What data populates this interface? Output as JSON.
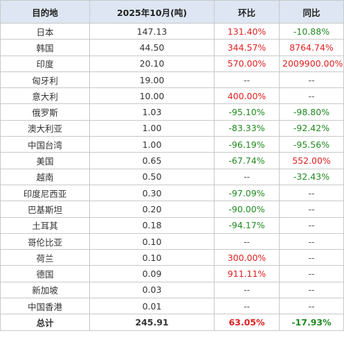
{
  "header": {
    "destination": "目的地",
    "volume": "2025年10月(吨)",
    "mom": "环比",
    "yoy": "同比"
  },
  "rows": [
    {
      "dest": "日本",
      "vol": "147.13",
      "mom": "131.40%",
      "mom_t": "pos",
      "yoy": "-10.88%",
      "yoy_t": "neg"
    },
    {
      "dest": "韩国",
      "vol": "44.50",
      "mom": "344.57%",
      "mom_t": "pos",
      "yoy": "8764.74%",
      "yoy_t": "pos"
    },
    {
      "dest": "印度",
      "vol": "20.10",
      "mom": "570.00%",
      "mom_t": "pos",
      "yoy": "2009900.00%",
      "yoy_t": "pos"
    },
    {
      "dest": "匈牙利",
      "vol": "19.00",
      "mom": "--",
      "mom_t": "na",
      "yoy": "--",
      "yoy_t": "na"
    },
    {
      "dest": "意大利",
      "vol": "10.00",
      "mom": "400.00%",
      "mom_t": "pos",
      "yoy": "--",
      "yoy_t": "na"
    },
    {
      "dest": "俄罗斯",
      "vol": "1.03",
      "mom": "-95.10%",
      "mom_t": "neg",
      "yoy": "-98.80%",
      "yoy_t": "neg"
    },
    {
      "dest": "澳大利亚",
      "vol": "1.00",
      "mom": "-83.33%",
      "mom_t": "neg",
      "yoy": "-92.42%",
      "yoy_t": "neg"
    },
    {
      "dest": "中国台湾",
      "vol": "1.00",
      "mom": "-96.19%",
      "mom_t": "neg",
      "yoy": "-95.56%",
      "yoy_t": "neg"
    },
    {
      "dest": "美国",
      "vol": "0.65",
      "mom": "-67.74%",
      "mom_t": "neg",
      "yoy": "552.00%",
      "yoy_t": "pos"
    },
    {
      "dest": "越南",
      "vol": "0.50",
      "mom": "--",
      "mom_t": "na",
      "yoy": "-32.43%",
      "yoy_t": "neg"
    },
    {
      "dest": "印度尼西亚",
      "vol": "0.30",
      "mom": "-97.09%",
      "mom_t": "neg",
      "yoy": "--",
      "yoy_t": "na"
    },
    {
      "dest": "巴基斯坦",
      "vol": "0.20",
      "mom": "-90.00%",
      "mom_t": "neg",
      "yoy": "--",
      "yoy_t": "na"
    },
    {
      "dest": "土耳其",
      "vol": "0.18",
      "mom": "-94.17%",
      "mom_t": "neg",
      "yoy": "--",
      "yoy_t": "na"
    },
    {
      "dest": "哥伦比亚",
      "vol": "0.10",
      "mom": "--",
      "mom_t": "na",
      "yoy": "--",
      "yoy_t": "na"
    },
    {
      "dest": "荷兰",
      "vol": "0.10",
      "mom": "300.00%",
      "mom_t": "pos",
      "yoy": "--",
      "yoy_t": "na"
    },
    {
      "dest": "德国",
      "vol": "0.09",
      "mom": "911.11%",
      "mom_t": "pos",
      "yoy": "--",
      "yoy_t": "na"
    },
    {
      "dest": "新加坡",
      "vol": "0.03",
      "mom": "--",
      "mom_t": "na",
      "yoy": "--",
      "yoy_t": "na"
    },
    {
      "dest": "中国香港",
      "vol": "0.01",
      "mom": "--",
      "mom_t": "na",
      "yoy": "--",
      "yoy_t": "na"
    }
  ],
  "total": {
    "dest": "总计",
    "vol": "245.91",
    "mom": "63.05%",
    "mom_t": "pos",
    "yoy": "-17.93%",
    "yoy_t": "neg"
  },
  "colors": {
    "positive": "#e02020",
    "negative": "#1f8a1f",
    "header_bg": "#dde6f2",
    "border": "#c8c8c8"
  }
}
